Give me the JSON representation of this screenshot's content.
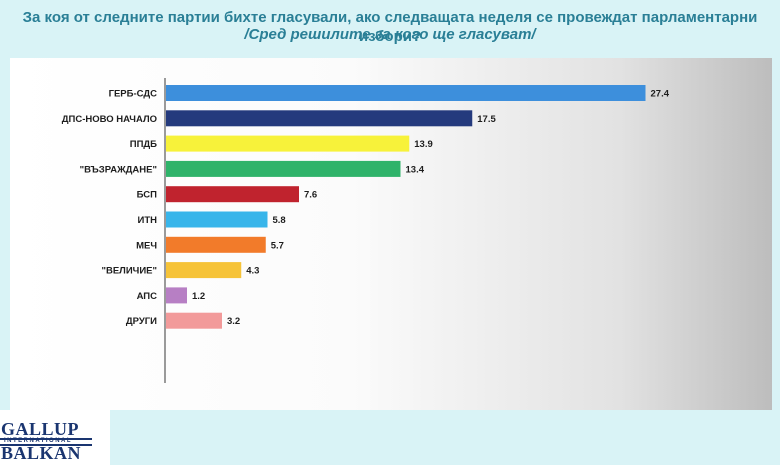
{
  "header": {
    "title": "За коя от следните партии бихте гласували, ако следващата неделя се провеждат парламентарни избори?",
    "subtitle": "/Сред решилите за кого ще гласуват/"
  },
  "logo": {
    "top": "GALLUP",
    "middle": "INTERNATIONAL",
    "bottom": "BALKAN"
  },
  "chart_data": {
    "type": "bar",
    "orientation": "horizontal",
    "title": "",
    "xlabel": "",
    "ylabel": "",
    "xlim": [
      0,
      30
    ],
    "grid": false,
    "legend": "none",
    "categories": [
      "ГЕРБ-СДС",
      "ДПС-НОВО НАЧАЛО",
      "ППДБ",
      "\"ВЪЗРАЖДАНЕ\"",
      "БСП",
      "ИТН",
      "МЕЧ",
      "\"ВЕЛИЧИЕ\"",
      "АПС",
      "ДРУГИ"
    ],
    "values": [
      27.4,
      17.5,
      13.9,
      13.4,
      7.6,
      5.8,
      5.7,
      4.3,
      1.2,
      3.2
    ],
    "labels": [
      "27.4",
      "17.5",
      "13.9",
      "13.4",
      "7.6",
      "5.8",
      "5.7",
      "4.3",
      "1.2",
      "3.2"
    ],
    "colors": [
      "#3d8fdc",
      "#243a7d",
      "#f7f23a",
      "#2fb36a",
      "#c0232e",
      "#38b5ea",
      "#f27b2a",
      "#f6c338",
      "#b77fc4",
      "#f29a9a"
    ]
  }
}
